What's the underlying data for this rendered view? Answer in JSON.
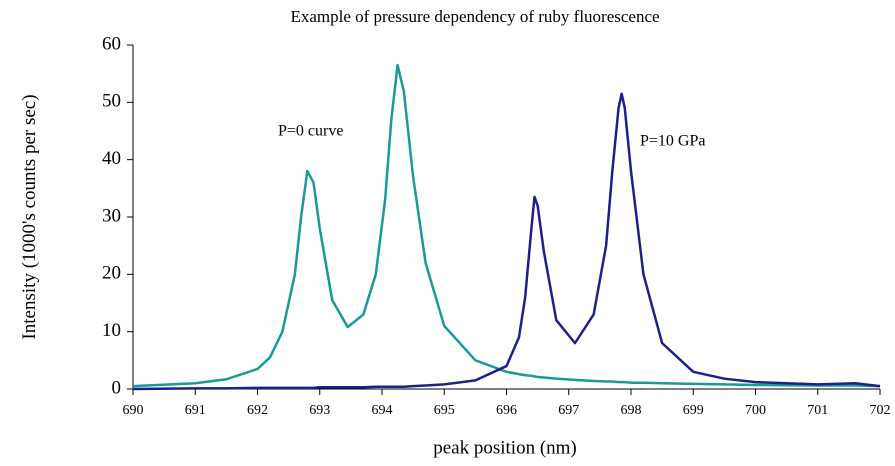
{
  "chart_data": {
    "type": "line",
    "title": "Example of pressure dependency of ruby fluorescence",
    "xlabel": "peak position (nm)",
    "ylabel": "Intensity (1000's counts per sec)",
    "annotations": [
      "P=0 curve",
      "P=10 GPa"
    ],
    "x": [
      690,
      691,
      691.5,
      692,
      692.2,
      692.4,
      692.6,
      692.7,
      692.8,
      692.9,
      693,
      693.2,
      693.45,
      693.7,
      693.9,
      694.05,
      694.15,
      694.25,
      694.35,
      694.5,
      694.7,
      695,
      695.5,
      696,
      696.2,
      696.3,
      696.4,
      696.45,
      696.5,
      696.6,
      696.8,
      697.1,
      697.4,
      697.6,
      697.7,
      697.8,
      697.85,
      697.9,
      698,
      698.2,
      698.5,
      699,
      699.5,
      700,
      701,
      701.6,
      702
    ],
    "series": [
      {
        "name": "P=0",
        "color": "#1a9a96",
        "values": [
          0.5,
          1,
          1.7,
          3.5,
          5.5,
          10,
          20,
          30,
          38,
          36,
          28,
          15.5,
          10.8,
          13,
          20,
          33,
          47,
          56.5,
          52,
          37,
          22,
          11,
          5,
          3,
          2.6,
          2.4,
          2.3,
          2.2,
          2.1,
          2,
          1.8,
          1.6,
          1.4,
          1.3,
          1.3,
          1.2,
          1.2,
          1.2,
          1.1,
          1.1,
          1,
          0.9,
          0.8,
          0.7,
          0.6,
          0.6,
          0.5
        ]
      },
      {
        "name": "P=10 GPa",
        "color": "#1f1f8c",
        "values": [
          0,
          0.1,
          0.1,
          0.2,
          0.2,
          0.2,
          0.2,
          0.2,
          0.2,
          0.2,
          0.3,
          0.3,
          0.3,
          0.3,
          0.4,
          0.4,
          0.4,
          0.4,
          0.4,
          0.5,
          0.6,
          0.8,
          1.5,
          4,
          9,
          16,
          28,
          33.5,
          32,
          24,
          12,
          8,
          13,
          25,
          38,
          49,
          51.5,
          49,
          38,
          20,
          8,
          3,
          1.8,
          1.2,
          0.8,
          1,
          0.5
        ]
      }
    ],
    "xlim": [
      690,
      702
    ],
    "xticks": [
      690,
      691,
      692,
      693,
      694,
      695,
      696,
      697,
      698,
      699,
      700,
      701,
      702
    ],
    "ylim": [
      0,
      60
    ],
    "yticks": [
      0,
      10,
      20,
      30,
      40,
      50,
      60
    ]
  }
}
